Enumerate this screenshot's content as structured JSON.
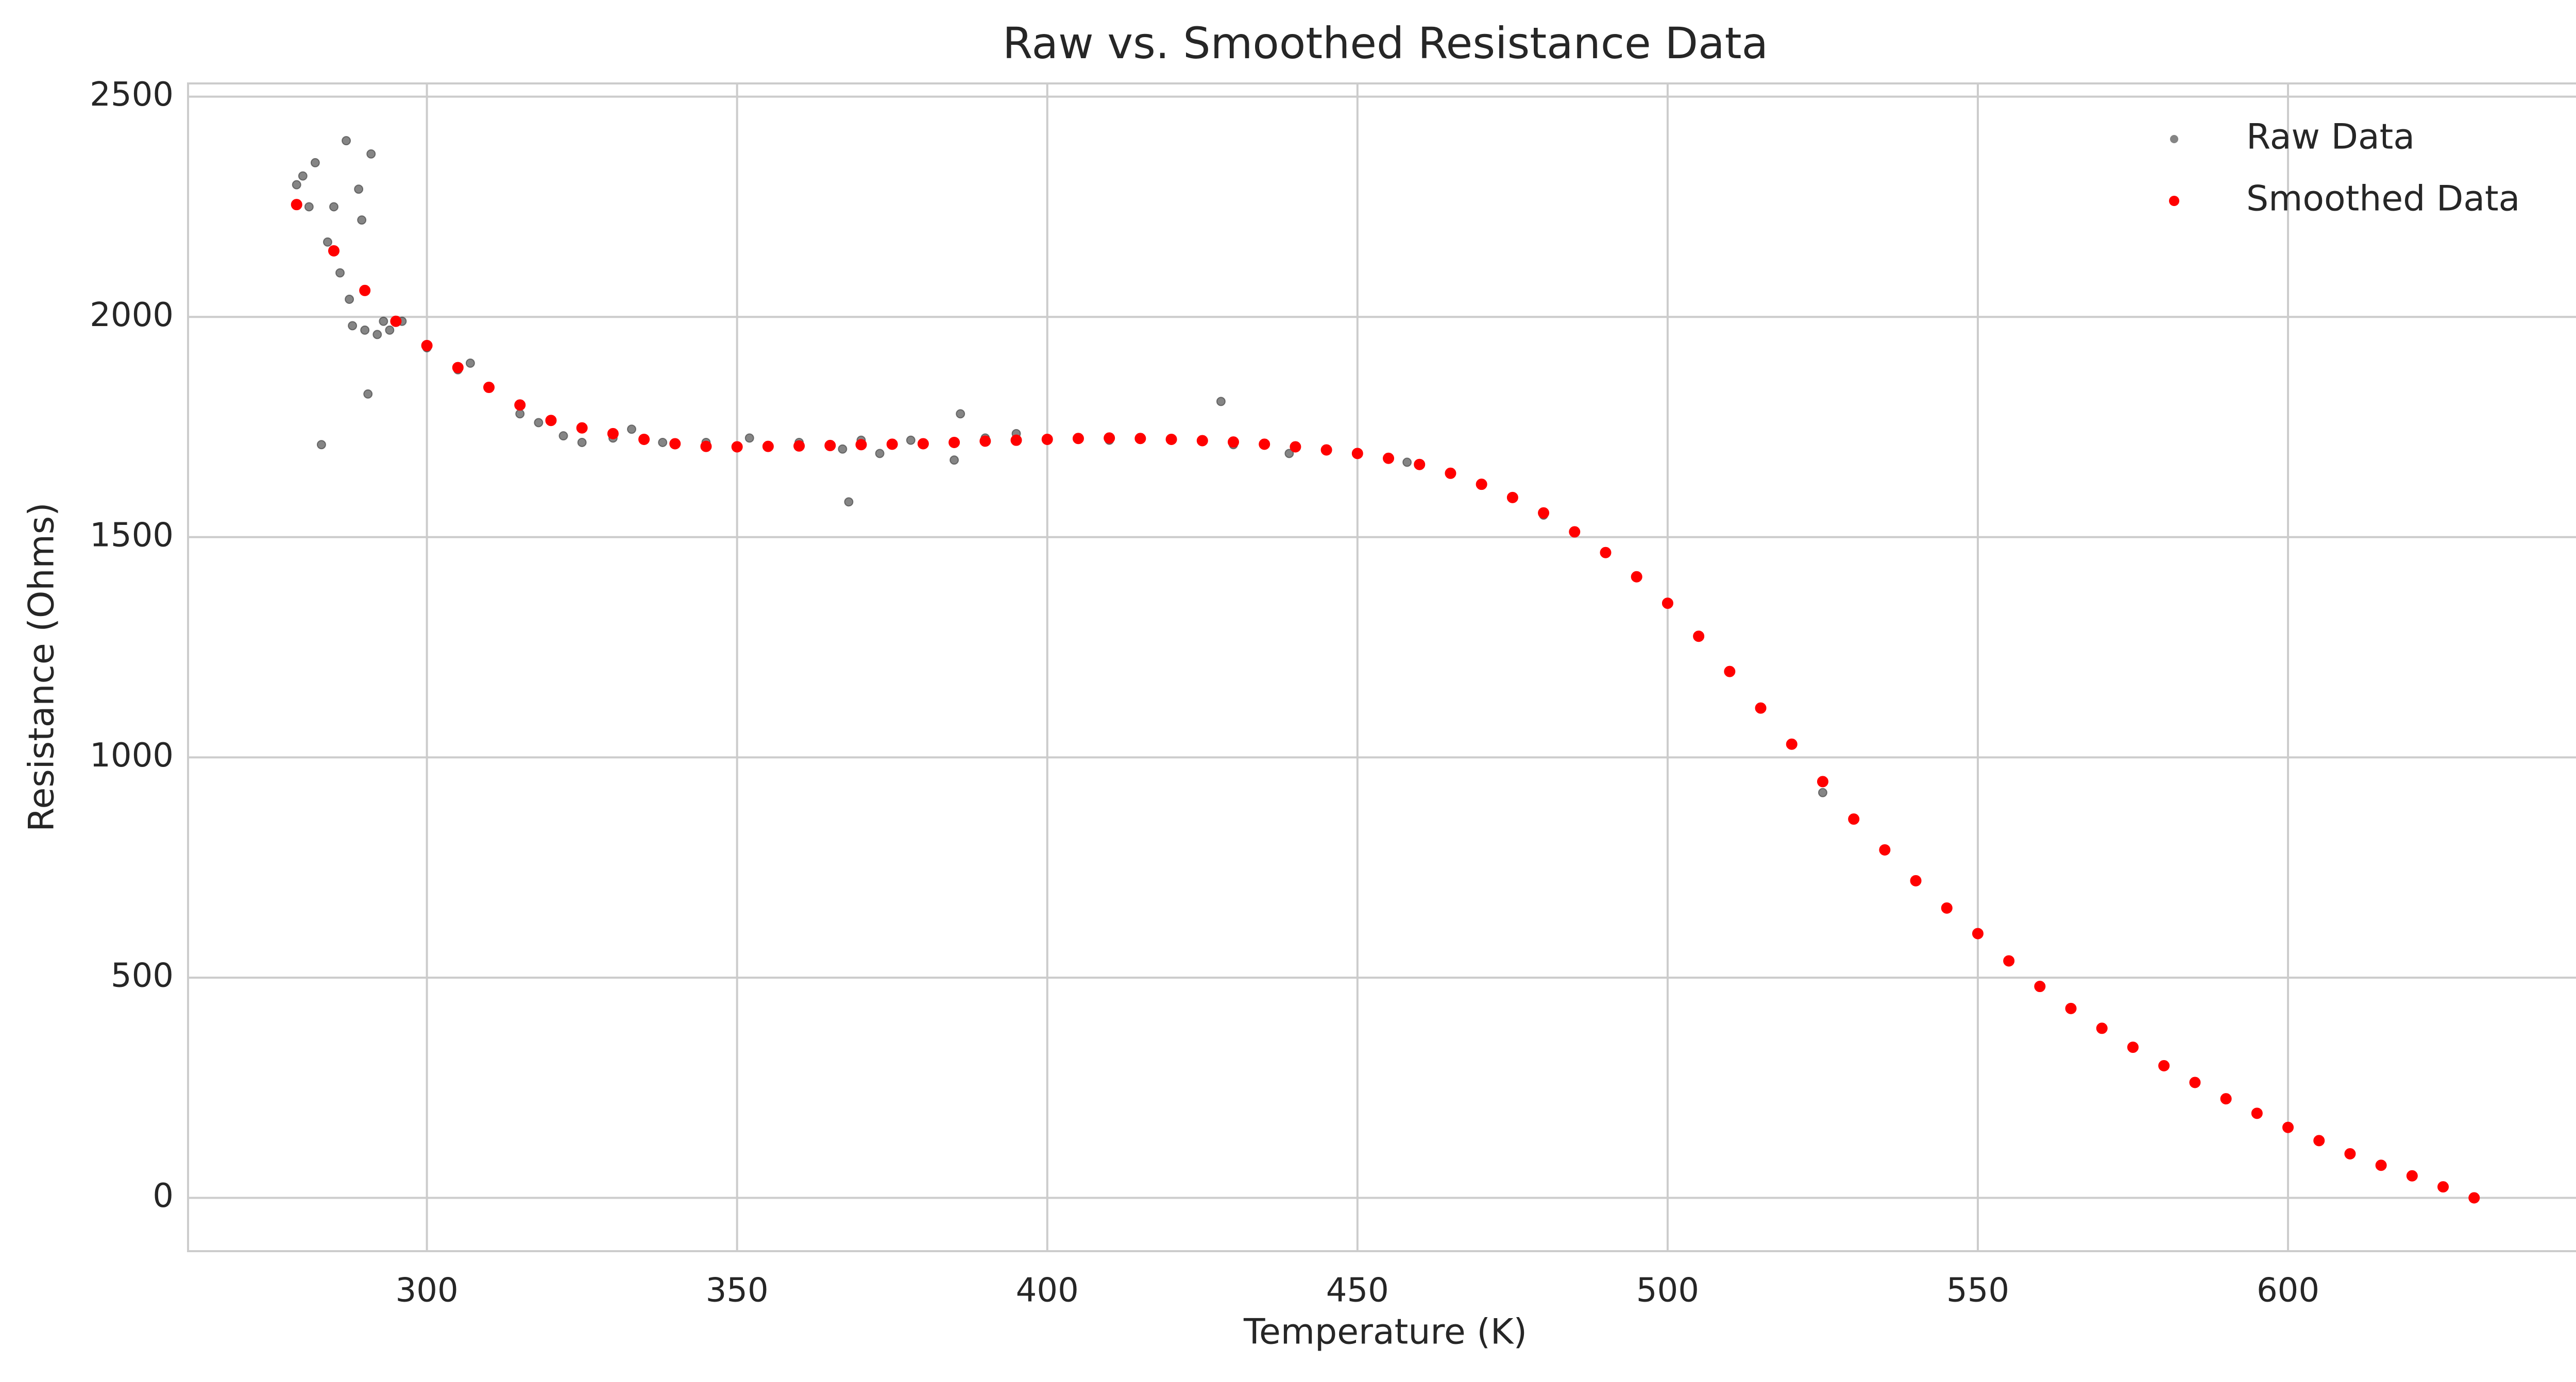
{
  "chart_data": {
    "type": "scatter",
    "title": "Raw vs. Smoothed Resistance Data",
    "x_label": "Temperature (K)",
    "y_label": "Resistance (Ohms)",
    "xlim": [
      261.5,
      647.5
    ],
    "xticks": [
      300,
      350,
      400,
      450,
      500,
      550,
      600
    ],
    "ylim": [
      -121,
      2530
    ],
    "yticks": [
      0,
      500,
      1000,
      1500,
      2000,
      2500
    ],
    "grid": true,
    "legend": "upper right",
    "series": [
      {
        "name": "Raw Data",
        "color": "#333333",
        "x": [
          279,
          280,
          281,
          282,
          283,
          284,
          285,
          286,
          287,
          287.5,
          288,
          289,
          289.5,
          290,
          290.5,
          291,
          292,
          293,
          294,
          296,
          300,
          305,
          307,
          310,
          315,
          318,
          322,
          325,
          330,
          333,
          338,
          345,
          352,
          360,
          367,
          368,
          370,
          373,
          378,
          385,
          386,
          390,
          395,
          410,
          420,
          428,
          430,
          439,
          450,
          458,
          480,
          500,
          525,
          550,
          575,
          600,
          625
        ],
        "values": [
          2300,
          2320,
          2250,
          2350,
          1710,
          2170,
          2250,
          2100,
          2400,
          2040,
          1980,
          2290,
          2220,
          1970,
          1825,
          2370,
          1960,
          1990,
          1970,
          1990,
          1930,
          1880,
          1895,
          1840,
          1780,
          1760,
          1730,
          1715,
          1725,
          1745,
          1715,
          1715,
          1725,
          1715,
          1700,
          1580,
          1720,
          1690,
          1720,
          1675,
          1780,
          1725,
          1735,
          1720,
          1720,
          1808,
          1710,
          1690,
          1690,
          1670,
          1550,
          1350,
          920,
          600,
          340,
          160,
          25
        ]
      },
      {
        "name": "Smoothed Data",
        "color": "#ff0000",
        "x": [
          279,
          285,
          290,
          295,
          300,
          305,
          310,
          315,
          320,
          325,
          330,
          335,
          340,
          345,
          350,
          355,
          360,
          365,
          370,
          375,
          380,
          385,
          390,
          395,
          400,
          405,
          410,
          415,
          420,
          425,
          430,
          435,
          440,
          445,
          450,
          455,
          460,
          465,
          470,
          475,
          480,
          485,
          490,
          495,
          500,
          505,
          510,
          515,
          520,
          525,
          530,
          535,
          540,
          545,
          550,
          555,
          560,
          565,
          570,
          575,
          580,
          585,
          590,
          595,
          600,
          605,
          610,
          615,
          620,
          625,
          630
        ],
        "values": [
          2255,
          2150,
          2060,
          1990,
          1935,
          1885,
          1840,
          1800,
          1765,
          1748,
          1735,
          1722,
          1712,
          1706,
          1705,
          1706,
          1707,
          1708,
          1710,
          1711,
          1712,
          1715,
          1718,
          1720,
          1722,
          1724,
          1725,
          1724,
          1722,
          1719,
          1716,
          1711,
          1705,
          1698,
          1690,
          1679,
          1665,
          1645,
          1620,
          1590,
          1555,
          1512,
          1465,
          1410,
          1350,
          1275,
          1195,
          1112,
          1030,
          945,
          860,
          790,
          720,
          658,
          600,
          538,
          480,
          430,
          385,
          342,
          300,
          262,
          225,
          192,
          160,
          130,
          100,
          74,
          50,
          25,
          0
        ]
      }
    ]
  }
}
